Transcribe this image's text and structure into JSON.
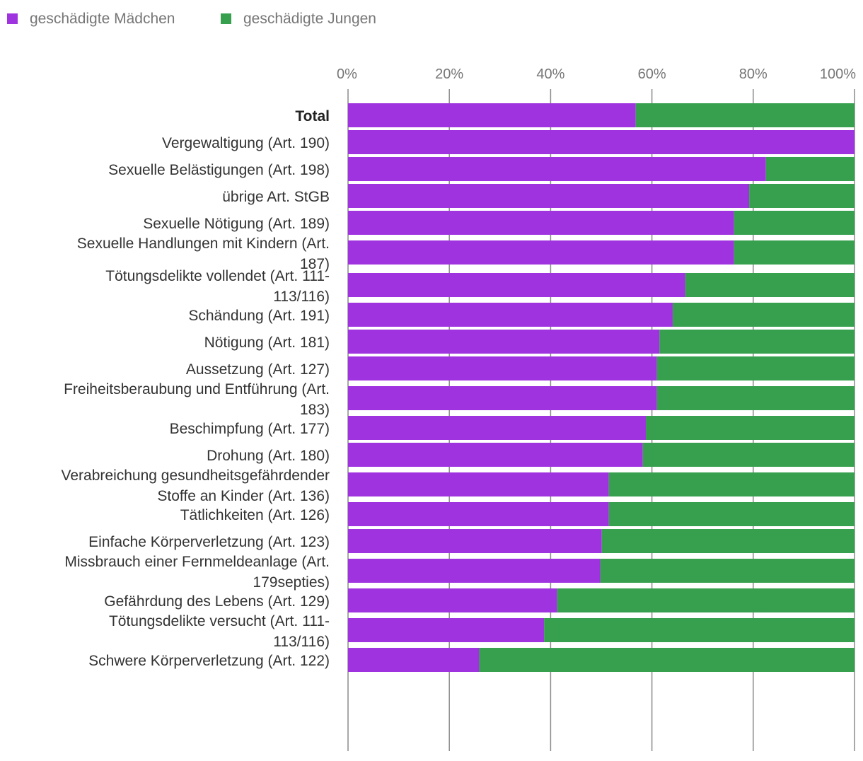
{
  "colors": {
    "girls": "#a033e0",
    "boys": "#37a04f"
  },
  "chart_data": {
    "type": "bar",
    "orientation": "horizontal",
    "stacked": "percent",
    "legend": {
      "position": "top-left"
    },
    "xlim": [
      0,
      100
    ],
    "xticks": [
      "0%",
      "20%",
      "40%",
      "60%",
      "80%",
      "100%"
    ],
    "grid": true,
    "categories": [
      {
        "label": "Total",
        "bold": true
      },
      {
        "label": "Vergewaltigung (Art. 190)"
      },
      {
        "label": "Sexuelle Belästigungen (Art. 198)"
      },
      {
        "label": "übrige Art. StGB"
      },
      {
        "label": "Sexuelle Nötigung (Art. 189)"
      },
      {
        "label": "Sexuelle Handlungen mit Kindern (Art. 187)",
        "lines": [
          "Sexuelle Handlungen mit Kindern (Art.",
          "187)"
        ]
      },
      {
        "label": "Tötungsdelikte vollendet (Art. 111-113/116)",
        "lines": [
          "Tötungsdelikte vollendet (Art. 111-",
          "113/116)"
        ]
      },
      {
        "label": "Schändung (Art. 191)"
      },
      {
        "label": "Nötigung (Art. 181)"
      },
      {
        "label": "Aussetzung (Art. 127)"
      },
      {
        "label": "Freiheitsberaubung und Entführung (Art. 183)",
        "lines": [
          "Freiheitsberaubung und Entführung (Art.",
          "183)"
        ]
      },
      {
        "label": "Beschimpfung (Art. 177)"
      },
      {
        "label": "Drohung (Art. 180)"
      },
      {
        "label": "Verabreichung gesundheitsgefährdender Stoffe an Kinder (Art. 136)",
        "lines": [
          "Verabreichung gesundheitsgefährdender",
          "Stoffe an Kinder (Art. 136)"
        ]
      },
      {
        "label": "Tätlichkeiten (Art. 126)"
      },
      {
        "label": "Einfache Körperverletzung (Art. 123)"
      },
      {
        "label": "Missbrauch einer Fernmeldeanlage (Art. 179septies)",
        "lines": [
          "Missbrauch einer Fernmeldeanlage (Art.",
          "179septies)"
        ]
      },
      {
        "label": "Gefährdung des Lebens (Art. 129)"
      },
      {
        "label": "Tötungsdelikte versucht (Art. 111-113/116)",
        "lines": [
          "Tötungsdelikte versucht (Art. 111-",
          "113/116)"
        ]
      },
      {
        "label": "Schwere Körperverletzung (Art. 122)"
      }
    ],
    "series": [
      {
        "name": "geschädigte Mädchen",
        "color_key": "girls",
        "values": [
          56.8,
          100,
          82.5,
          79.2,
          76.2,
          76.2,
          66.6,
          64.1,
          61.5,
          61.0,
          61.0,
          58.8,
          58.2,
          51.5,
          51.5,
          50.1,
          49.8,
          41.3,
          38.7,
          25.9
        ]
      },
      {
        "name": "geschädigte Jungen",
        "color_key": "boys",
        "values": [
          43.2,
          0,
          17.5,
          20.8,
          23.8,
          23.8,
          33.4,
          35.9,
          38.5,
          39.0,
          39.0,
          41.2,
          41.8,
          48.5,
          48.5,
          49.9,
          50.2,
          58.7,
          61.3,
          74.1
        ]
      }
    ]
  }
}
